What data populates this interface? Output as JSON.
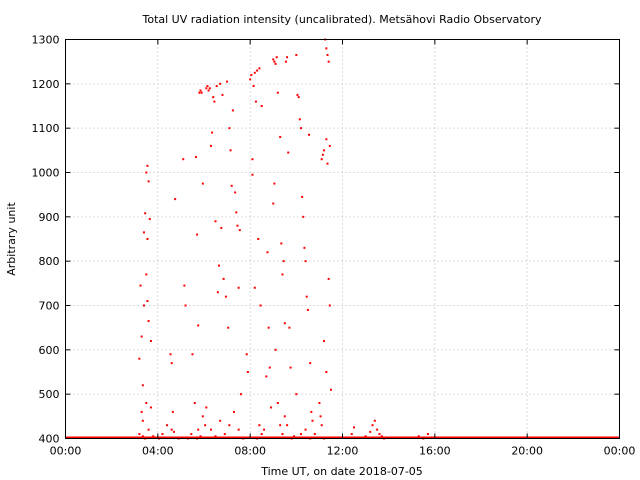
{
  "chart_data": {
    "type": "scatter",
    "title": "Total UV radiation intensity (uncalibrated). Metsähovi Radio Observatory",
    "xlabel": "Time UT, on date 2018-07-05",
    "ylabel": "Arbitrary unit",
    "xlim": [
      0,
      24
    ],
    "ylim": [
      400,
      1300
    ],
    "grid": true,
    "x_ticks": [
      0,
      4,
      8,
      12,
      16,
      20,
      24
    ],
    "x_tick_labels": [
      "00:00",
      "04:00",
      "08:00",
      "12:00",
      "16:00",
      "20:00",
      "00:00"
    ],
    "y_ticks": [
      400,
      500,
      600,
      700,
      800,
      900,
      1000,
      1100,
      1200,
      1300
    ],
    "y_tick_labels": [
      "400",
      "500",
      "600",
      "700",
      "800",
      "900",
      "1000",
      "1100",
      "1200",
      "1300"
    ],
    "marker_color": "#ff0000",
    "baseline": {
      "value": 400,
      "x_start": 0,
      "x_end": 24
    },
    "series": [
      {
        "points": [
          [
            3.2,
            580
          ],
          [
            3.25,
            745
          ],
          [
            3.3,
            460
          ],
          [
            3.35,
            520
          ],
          [
            3.4,
            865
          ],
          [
            3.45,
            908
          ],
          [
            3.5,
            1000
          ],
          [
            3.55,
            1015
          ],
          [
            3.6,
            980
          ],
          [
            3.65,
            895
          ],
          [
            3.3,
            630
          ],
          [
            3.4,
            700
          ],
          [
            3.5,
            770
          ],
          [
            3.55,
            710
          ],
          [
            3.6,
            665
          ],
          [
            3.7,
            470
          ],
          [
            3.35,
            440
          ],
          [
            3.45,
            400
          ],
          [
            3.5,
            480
          ],
          [
            3.6,
            420
          ],
          [
            3.2,
            410
          ],
          [
            3.35,
            405
          ],
          [
            3.55,
            850
          ],
          [
            3.7,
            620
          ],
          [
            3.8,
            405
          ],
          [
            4.05,
            400
          ],
          [
            4.2,
            410
          ],
          [
            4.4,
            430
          ],
          [
            4.55,
            590
          ],
          [
            4.6,
            570
          ],
          [
            4.65,
            460
          ],
          [
            4.75,
            940
          ],
          [
            4.9,
            400
          ],
          [
            4.6,
            420
          ],
          [
            4.7,
            415
          ],
          [
            5.1,
            1030
          ],
          [
            5.15,
            745
          ],
          [
            5.2,
            700
          ],
          [
            5.3,
            400
          ],
          [
            5.45,
            410
          ],
          [
            5.5,
            590
          ],
          [
            5.6,
            480
          ],
          [
            5.65,
            1035
          ],
          [
            5.7,
            860
          ],
          [
            5.75,
            655
          ],
          [
            5.8,
            1180
          ],
          [
            5.85,
            1185
          ],
          [
            5.9,
            1180
          ],
          [
            5.95,
            975
          ],
          [
            5.75,
            420
          ],
          [
            5.85,
            405
          ],
          [
            5.95,
            450
          ],
          [
            5.7,
            400
          ],
          [
            6.05,
            430
          ],
          [
            6.1,
            1190
          ],
          [
            6.15,
            1195
          ],
          [
            6.2,
            1185
          ],
          [
            6.25,
            1190
          ],
          [
            6.3,
            1060
          ],
          [
            6.35,
            1090
          ],
          [
            6.4,
            1170
          ],
          [
            6.45,
            1160
          ],
          [
            6.5,
            890
          ],
          [
            6.55,
            1195
          ],
          [
            6.6,
            730
          ],
          [
            6.65,
            790
          ],
          [
            6.7,
            1200
          ],
          [
            6.75,
            875
          ],
          [
            6.8,
            1175
          ],
          [
            6.85,
            760
          ],
          [
            6.95,
            720
          ],
          [
            7.0,
            1205
          ],
          [
            7.05,
            650
          ],
          [
            7.1,
            1100
          ],
          [
            7.15,
            1050
          ],
          [
            7.2,
            970
          ],
          [
            7.25,
            1140
          ],
          [
            7.35,
            955
          ],
          [
            7.4,
            910
          ],
          [
            7.45,
            880
          ],
          [
            7.5,
            740
          ],
          [
            7.55,
            870
          ],
          [
            7.6,
            500
          ],
          [
            6.1,
            470
          ],
          [
            6.3,
            420
          ],
          [
            6.5,
            405
          ],
          [
            6.7,
            440
          ],
          [
            6.9,
            410
          ],
          [
            7.1,
            430
          ],
          [
            7.3,
            460
          ],
          [
            7.5,
            420
          ],
          [
            7.7,
            400
          ],
          [
            7.85,
            590
          ],
          [
            7.9,
            550
          ],
          [
            8.0,
            1210
          ],
          [
            8.05,
            1220
          ],
          [
            8.1,
            1030
          ],
          [
            8.15,
            1195
          ],
          [
            8.2,
            1225
          ],
          [
            8.25,
            1160
          ],
          [
            8.3,
            1230
          ],
          [
            8.35,
            850
          ],
          [
            8.4,
            1235
          ],
          [
            8.45,
            700
          ],
          [
            8.5,
            1150
          ],
          [
            8.1,
            995
          ],
          [
            8.2,
            740
          ],
          [
            8.3,
            400
          ],
          [
            8.4,
            430
          ],
          [
            8.5,
            410
          ],
          [
            8.6,
            420
          ],
          [
            8.7,
            540
          ],
          [
            8.75,
            820
          ],
          [
            8.8,
            650
          ],
          [
            8.85,
            560
          ],
          [
            8.9,
            470
          ],
          [
            9.0,
            1255
          ],
          [
            9.05,
            1250
          ],
          [
            9.1,
            1245
          ],
          [
            9.15,
            1260
          ],
          [
            9.2,
            1180
          ],
          [
            9.3,
            1080
          ],
          [
            9.35,
            840
          ],
          [
            9.4,
            770
          ],
          [
            9.45,
            800
          ],
          [
            9.5,
            660
          ],
          [
            9.55,
            1250
          ],
          [
            9.6,
            1260
          ],
          [
            9.65,
            1045
          ],
          [
            9.7,
            650
          ],
          [
            9.75,
            560
          ],
          [
            9.5,
            450
          ],
          [
            9.0,
            930
          ],
          [
            9.05,
            975
          ],
          [
            9.1,
            600
          ],
          [
            9.2,
            480
          ],
          [
            9.3,
            430
          ],
          [
            9.4,
            410
          ],
          [
            9.6,
            430
          ],
          [
            9.8,
            400
          ],
          [
            9.9,
            405
          ],
          [
            10.0,
            1265
          ],
          [
            10.05,
            1175
          ],
          [
            10.1,
            1170
          ],
          [
            10.15,
            1120
          ],
          [
            10.2,
            1100
          ],
          [
            10.25,
            945
          ],
          [
            10.3,
            900
          ],
          [
            10.35,
            830
          ],
          [
            10.4,
            800
          ],
          [
            10.45,
            720
          ],
          [
            10.5,
            690
          ],
          [
            10.55,
            1085
          ],
          [
            10.6,
            570
          ],
          [
            10.65,
            460
          ],
          [
            10.7,
            440
          ],
          [
            10.0,
            500
          ],
          [
            10.2,
            410
          ],
          [
            10.4,
            420
          ],
          [
            10.6,
            400
          ],
          [
            10.8,
            410
          ],
          [
            11.0,
            480
          ],
          [
            11.05,
            450
          ],
          [
            11.1,
            1030
          ],
          [
            11.15,
            1040
          ],
          [
            11.2,
            1050
          ],
          [
            11.25,
            1300
          ],
          [
            11.3,
            1280
          ],
          [
            11.35,
            1265
          ],
          [
            11.4,
            1250
          ],
          [
            11.45,
            1060
          ],
          [
            11.3,
            1075
          ],
          [
            11.35,
            1020
          ],
          [
            11.4,
            760
          ],
          [
            11.45,
            700
          ],
          [
            11.5,
            510
          ],
          [
            11.2,
            620
          ],
          [
            11.3,
            550
          ],
          [
            11.1,
            430
          ],
          [
            11.2,
            400
          ],
          [
            12.4,
            410
          ],
          [
            12.5,
            425
          ],
          [
            13.0,
            405
          ],
          [
            13.2,
            415
          ],
          [
            13.3,
            430
          ],
          [
            13.4,
            440
          ],
          [
            13.5,
            420
          ],
          [
            13.6,
            410
          ],
          [
            13.7,
            405
          ],
          [
            13.8,
            400
          ],
          [
            15.3,
            405
          ],
          [
            15.5,
            400
          ],
          [
            15.7,
            410
          ]
        ]
      }
    ]
  }
}
